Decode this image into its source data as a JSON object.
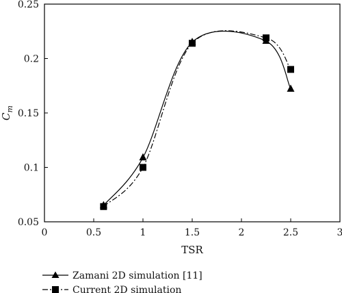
{
  "chart_data": {
    "type": "line",
    "xlabel": "TSR",
    "ylabel": "C",
    "ylabel_subscript": "m",
    "xlim": [
      0,
      3
    ],
    "ylim": [
      0.05,
      0.25
    ],
    "xticks": [
      "0",
      "0.5",
      "1",
      "1.5",
      "2",
      "2.5",
      "3"
    ],
    "yticks": [
      "0.05",
      "0.1",
      "0.15",
      "0.2",
      "0.25"
    ],
    "grid": false,
    "legend_position": "bottom-left",
    "series": [
      {
        "name": "Zamani 2D simulation [11]",
        "marker": "triangle",
        "line_style": "solid",
        "color": "#000000",
        "points": [
          [
            0.6,
            0.065
          ],
          [
            1.0,
            0.109
          ],
          [
            1.5,
            0.215
          ],
          [
            2.25,
            0.216
          ],
          [
            2.5,
            0.172
          ]
        ]
      },
      {
        "name": "Current 2D simulation",
        "marker": "square",
        "line_style": "dash-dot",
        "color": "#000000",
        "points": [
          [
            0.6,
            0.064
          ],
          [
            1.0,
            0.1
          ],
          [
            1.5,
            0.214
          ],
          [
            2.25,
            0.219
          ],
          [
            2.5,
            0.19
          ]
        ]
      }
    ]
  }
}
